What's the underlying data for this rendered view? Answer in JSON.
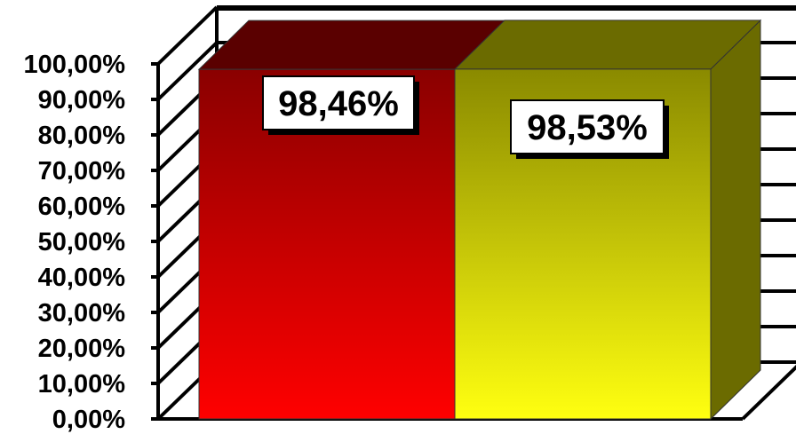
{
  "chart_data": {
    "type": "bar",
    "title": "",
    "xlabel": "",
    "ylabel": "",
    "ylim": [
      0,
      100
    ],
    "y_tick_labels": [
      "0,00%",
      "10,00%",
      "20,00%",
      "30,00%",
      "40,00%",
      "50,00%",
      "60,00%",
      "70,00%",
      "80,00%",
      "90,00%",
      "100,00%"
    ],
    "grid": true,
    "legend": "none",
    "series": [
      {
        "values": [
          98.46
        ],
        "label_text": "98,46%",
        "color_top": "#8a0000",
        "color_bottom": "#ff0000",
        "color_roof": "#5a0000"
      },
      {
        "values": [
          98.53
        ],
        "label_text": "98,53%",
        "color_top": "#8a8a00",
        "color_bottom": "#ffff10",
        "color_roof": "#6b6b00",
        "color_side": "#6b6b00"
      }
    ]
  }
}
